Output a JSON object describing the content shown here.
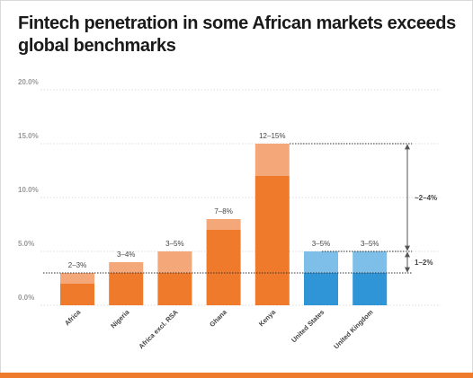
{
  "title": "Fintech penetration in some African markets exceeds global benchmarks",
  "chart_data": {
    "type": "bar",
    "stacked": true,
    "title": "Fintech penetration in some African markets exceeds global benchmarks",
    "xlabel": "",
    "ylabel": "",
    "ylim": [
      0,
      20
    ],
    "yticks": [
      0,
      5,
      10,
      15,
      20
    ],
    "ytick_labels": [
      "0.0%",
      "5.0%",
      "10.0%",
      "15.0%",
      "20.0%"
    ],
    "grid": true,
    "categories": [
      "Africa",
      "Nigeria",
      "Africa excl. RSA",
      "Ghana",
      "Kenya",
      "United States",
      "United Kingdom"
    ],
    "range_labels": [
      "2–3%",
      "3–4%",
      "3–5%",
      "7–8%",
      "12–15%",
      "3–5%",
      "3–5%"
    ],
    "low_values": [
      2,
      3,
      3,
      7,
      12,
      3,
      3
    ],
    "high_values": [
      3,
      4,
      5,
      8,
      15,
      5,
      5
    ],
    "bar_colors": [
      "#f07a2c",
      "#f07a2c",
      "#f07a2c",
      "#f07a2c",
      "#f07a2c",
      "#2f95d6",
      "#2f95d6"
    ],
    "bar_colors_light": [
      "#f4a87a",
      "#f4a87a",
      "#f4a87a",
      "#f4a87a",
      "#f4a87a",
      "#7dbfe8",
      "#7dbfe8"
    ],
    "reference_lines": [
      3,
      5,
      15
    ],
    "annotations": [
      {
        "label": "1–2%",
        "from": 3,
        "to": 5
      },
      {
        "label": "~2–4%",
        "from": 5,
        "to": 15
      }
    ],
    "colors": {
      "accent": "#f07a2c",
      "accent_light": "#f4a87a",
      "benchmark": "#2f95d6",
      "benchmark_light": "#7dbfe8",
      "grid": "#dddddd",
      "tick_text": "#999999",
      "label_text": "#444444"
    }
  }
}
